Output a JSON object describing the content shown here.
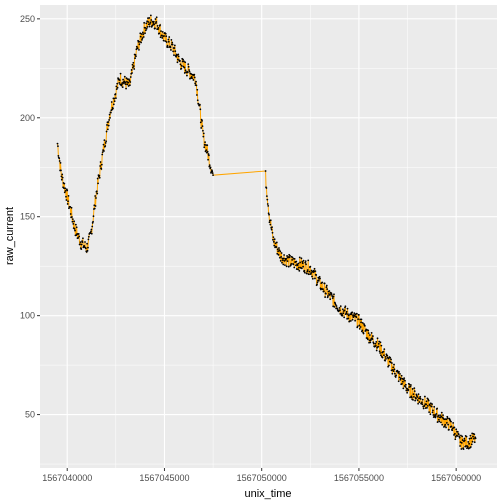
{
  "chart_data": {
    "type": "scatter",
    "xlabel": "unix_time",
    "ylabel": "raw_current",
    "xlim": [
      1567038600,
      1567062100
    ],
    "ylim": [
      23,
      257
    ],
    "x_ticks": [
      1567040000,
      1567045000,
      1567050000,
      1567055000,
      1567060000
    ],
    "x_tick_labels": [
      "1567040000",
      "1567045000",
      "1567050000",
      "1567055000",
      "1567060000"
    ],
    "y_ticks": [
      50,
      100,
      150,
      200,
      250
    ],
    "y_tick_labels": [
      "50",
      "100",
      "150",
      "200",
      "250"
    ],
    "grid": true,
    "panel_background": "#ebebeb",
    "grid_color": "#ffffff",
    "point_color": "#000000",
    "line_color": "#ffa500",
    "series": [
      {
        "x": [
          1567039500,
          1567039700,
          1567040000,
          1567040400,
          1567040700,
          1567041000,
          1567041200,
          1567041500,
          1567041800,
          1567042200,
          1567042700,
          1567043200,
          1567043600,
          1567044000,
          1567044300,
          1567044600,
          1567045000,
          1567045400,
          1567045800,
          1567046200,
          1567046600,
          1567047000,
          1567047200,
          1567047500,
          1567050200,
          1567050400,
          1567050600,
          1567051000,
          1567051500,
          1567052000,
          1567052500,
          1567053000,
          1567053500,
          1567054000,
          1567054500,
          1567055000,
          1567055500,
          1567056000,
          1567056500,
          1567057000,
          1567057500,
          1567058000,
          1567058500,
          1567059000,
          1567059500,
          1567059800,
          1567060200,
          1567060600,
          1567061000
        ],
        "y": [
          187,
          171,
          160,
          144,
          137,
          134,
          140,
          162,
          180,
          203,
          220,
          216,
          235,
          246,
          249,
          248,
          240,
          236,
          228,
          224,
          220,
          190,
          183,
          171,
          170,
          150,
          138,
          130,
          127,
          126,
          124,
          116,
          110,
          104,
          100,
          97,
          90,
          85,
          77,
          70,
          63,
          59,
          55,
          50,
          46,
          44,
          36,
          36,
          38
        ]
      }
    ]
  }
}
